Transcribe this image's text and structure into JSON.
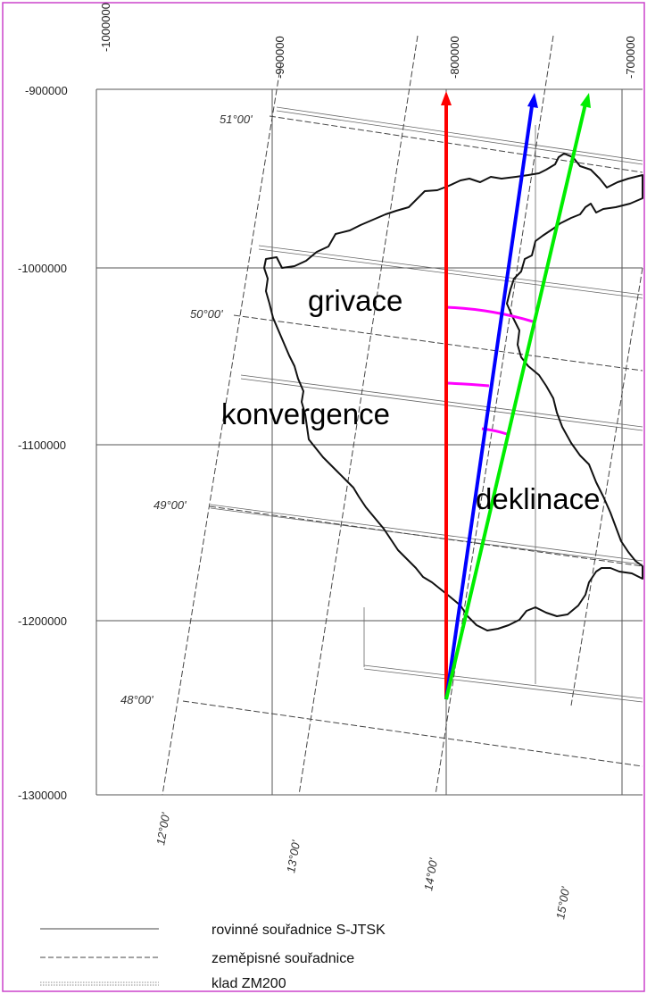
{
  "map": {
    "x_ticks": [
      "-1000000",
      "-900000",
      "-800000",
      "-700000"
    ],
    "y_ticks": [
      "-900000",
      "-1000000",
      "-1100000",
      "-1200000",
      "-1300000"
    ],
    "latitudes": [
      "51°00'",
      "50°00'",
      "49°00'",
      "48°00'"
    ],
    "longitudes": [
      "12°00'",
      "13°00'",
      "14°00'",
      "15°00'"
    ],
    "annotations": {
      "grivace": "grivace",
      "konvergence": "konvergence",
      "deklinace": "deklinace"
    },
    "colors": {
      "frame": "#cc44cc",
      "grid_north": "#ff0000",
      "magnetic_north": "#0000ff",
      "geographic_north": "#00ee00",
      "angle_arcs": "#ff00ff"
    }
  },
  "legend": {
    "items": [
      {
        "style": "solid",
        "label": "rovinné souřadnice S-JTSK"
      },
      {
        "style": "dashed",
        "label": "zeměpisné souřadnice"
      },
      {
        "style": "double",
        "label": "klad ZM200"
      }
    ]
  }
}
